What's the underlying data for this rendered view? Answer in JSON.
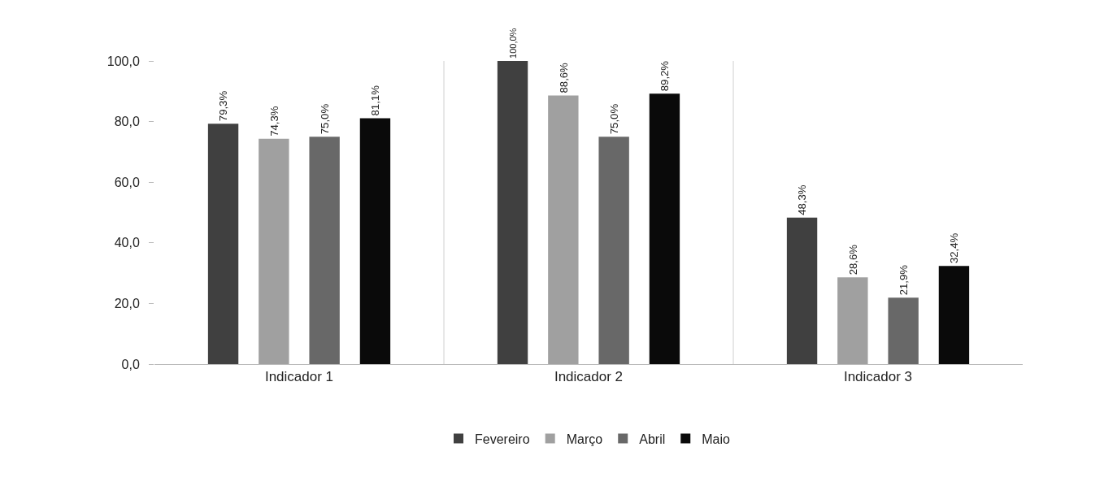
{
  "chart_data": {
    "type": "bar",
    "categories": [
      "Indicador 1",
      "Indicador 2",
      "Indicador 3"
    ],
    "series": [
      {
        "name": "Fevereiro",
        "color": "#404040",
        "values": [
          79.3,
          100.0,
          48.3
        ],
        "value_labels": [
          "79,3%",
          "100,0%",
          "48,3%"
        ]
      },
      {
        "name": "Março",
        "color": "#a0a0a0",
        "values": [
          74.3,
          88.6,
          28.6
        ],
        "value_labels": [
          "74,3%",
          "88,6%",
          "28,6%"
        ]
      },
      {
        "name": "Abril",
        "color": "#686868",
        "values": [
          75.0,
          75.0,
          21.9
        ],
        "value_labels": [
          "75,0%",
          "75,0%",
          "21,9%"
        ]
      },
      {
        "name": "Maio",
        "color": "#0a0a0a",
        "values": [
          81.1,
          89.2,
          32.4
        ],
        "value_labels": [
          "81,1%",
          "89,2%",
          "32,4%"
        ]
      }
    ],
    "ylim": [
      0,
      100
    ],
    "yticks": [
      {
        "value": 0,
        "label": "0,0"
      },
      {
        "value": 20,
        "label": "20,0"
      },
      {
        "value": 40,
        "label": "40,0"
      },
      {
        "value": 60,
        "label": "60,0"
      },
      {
        "value": 80,
        "label": "80,0"
      },
      {
        "value": 100,
        "label": "100,0"
      }
    ],
    "grid": "x",
    "legend": "bottom"
  }
}
